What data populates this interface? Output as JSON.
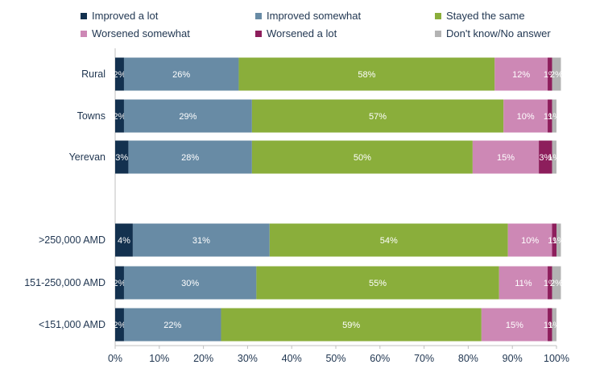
{
  "chart_data": {
    "type": "bar",
    "orientation": "horizontal",
    "stacked": true,
    "title": "",
    "xlabel": "",
    "ylabel": "",
    "xlim": [
      0,
      100
    ],
    "x_ticks": [
      "0%",
      "10%",
      "20%",
      "30%",
      "40%",
      "50%",
      "60%",
      "70%",
      "80%",
      "90%",
      "100%"
    ],
    "legend_position": "top",
    "categories": [
      "Rural",
      "Towns",
      "Yerevan",
      "",
      ">250,000 AMD",
      "151-250,000 AMD",
      "<151,000 AMD"
    ],
    "series": [
      {
        "name": "Improved a lot",
        "color": "#13314f",
        "values": [
          2,
          2,
          3,
          null,
          4,
          2,
          2
        ],
        "labels": [
          "2%",
          "2%",
          "3%",
          "",
          "4%",
          "2%",
          "2%"
        ]
      },
      {
        "name": "Improved somewhat",
        "color": "#688ba5",
        "values": [
          26,
          29,
          28,
          null,
          31,
          30,
          22
        ],
        "labels": [
          "26%",
          "29%",
          "28%",
          "",
          "31%",
          "30%",
          "22%"
        ]
      },
      {
        "name": "Stayed the same",
        "color": "#8aae3b",
        "values": [
          58,
          57,
          50,
          null,
          54,
          55,
          59
        ],
        "labels": [
          "58%",
          "57%",
          "50%",
          "",
          "54%",
          "55%",
          "59%"
        ]
      },
      {
        "name": "Worsened somewhat",
        "color": "#cd88b5",
        "values": [
          12,
          10,
          15,
          null,
          10,
          11,
          15
        ],
        "labels": [
          "12%",
          "10%",
          "15%",
          "",
          "10%",
          "11%",
          "15%"
        ]
      },
      {
        "name": "Worsened a lot",
        "color": "#8d1e5c",
        "values": [
          1,
          1,
          3,
          null,
          1,
          1,
          1
        ],
        "labels": [
          "1%",
          "1%",
          "3%",
          "",
          "1%",
          "1%",
          "1%"
        ]
      },
      {
        "name": "Don't know/No answer",
        "color": "#b3b3b3",
        "values": [
          2,
          1,
          1,
          null,
          1,
          2,
          1
        ],
        "labels": [
          "2%",
          "1%",
          "1%",
          "",
          "1%",
          "2%",
          "1%"
        ]
      }
    ]
  }
}
